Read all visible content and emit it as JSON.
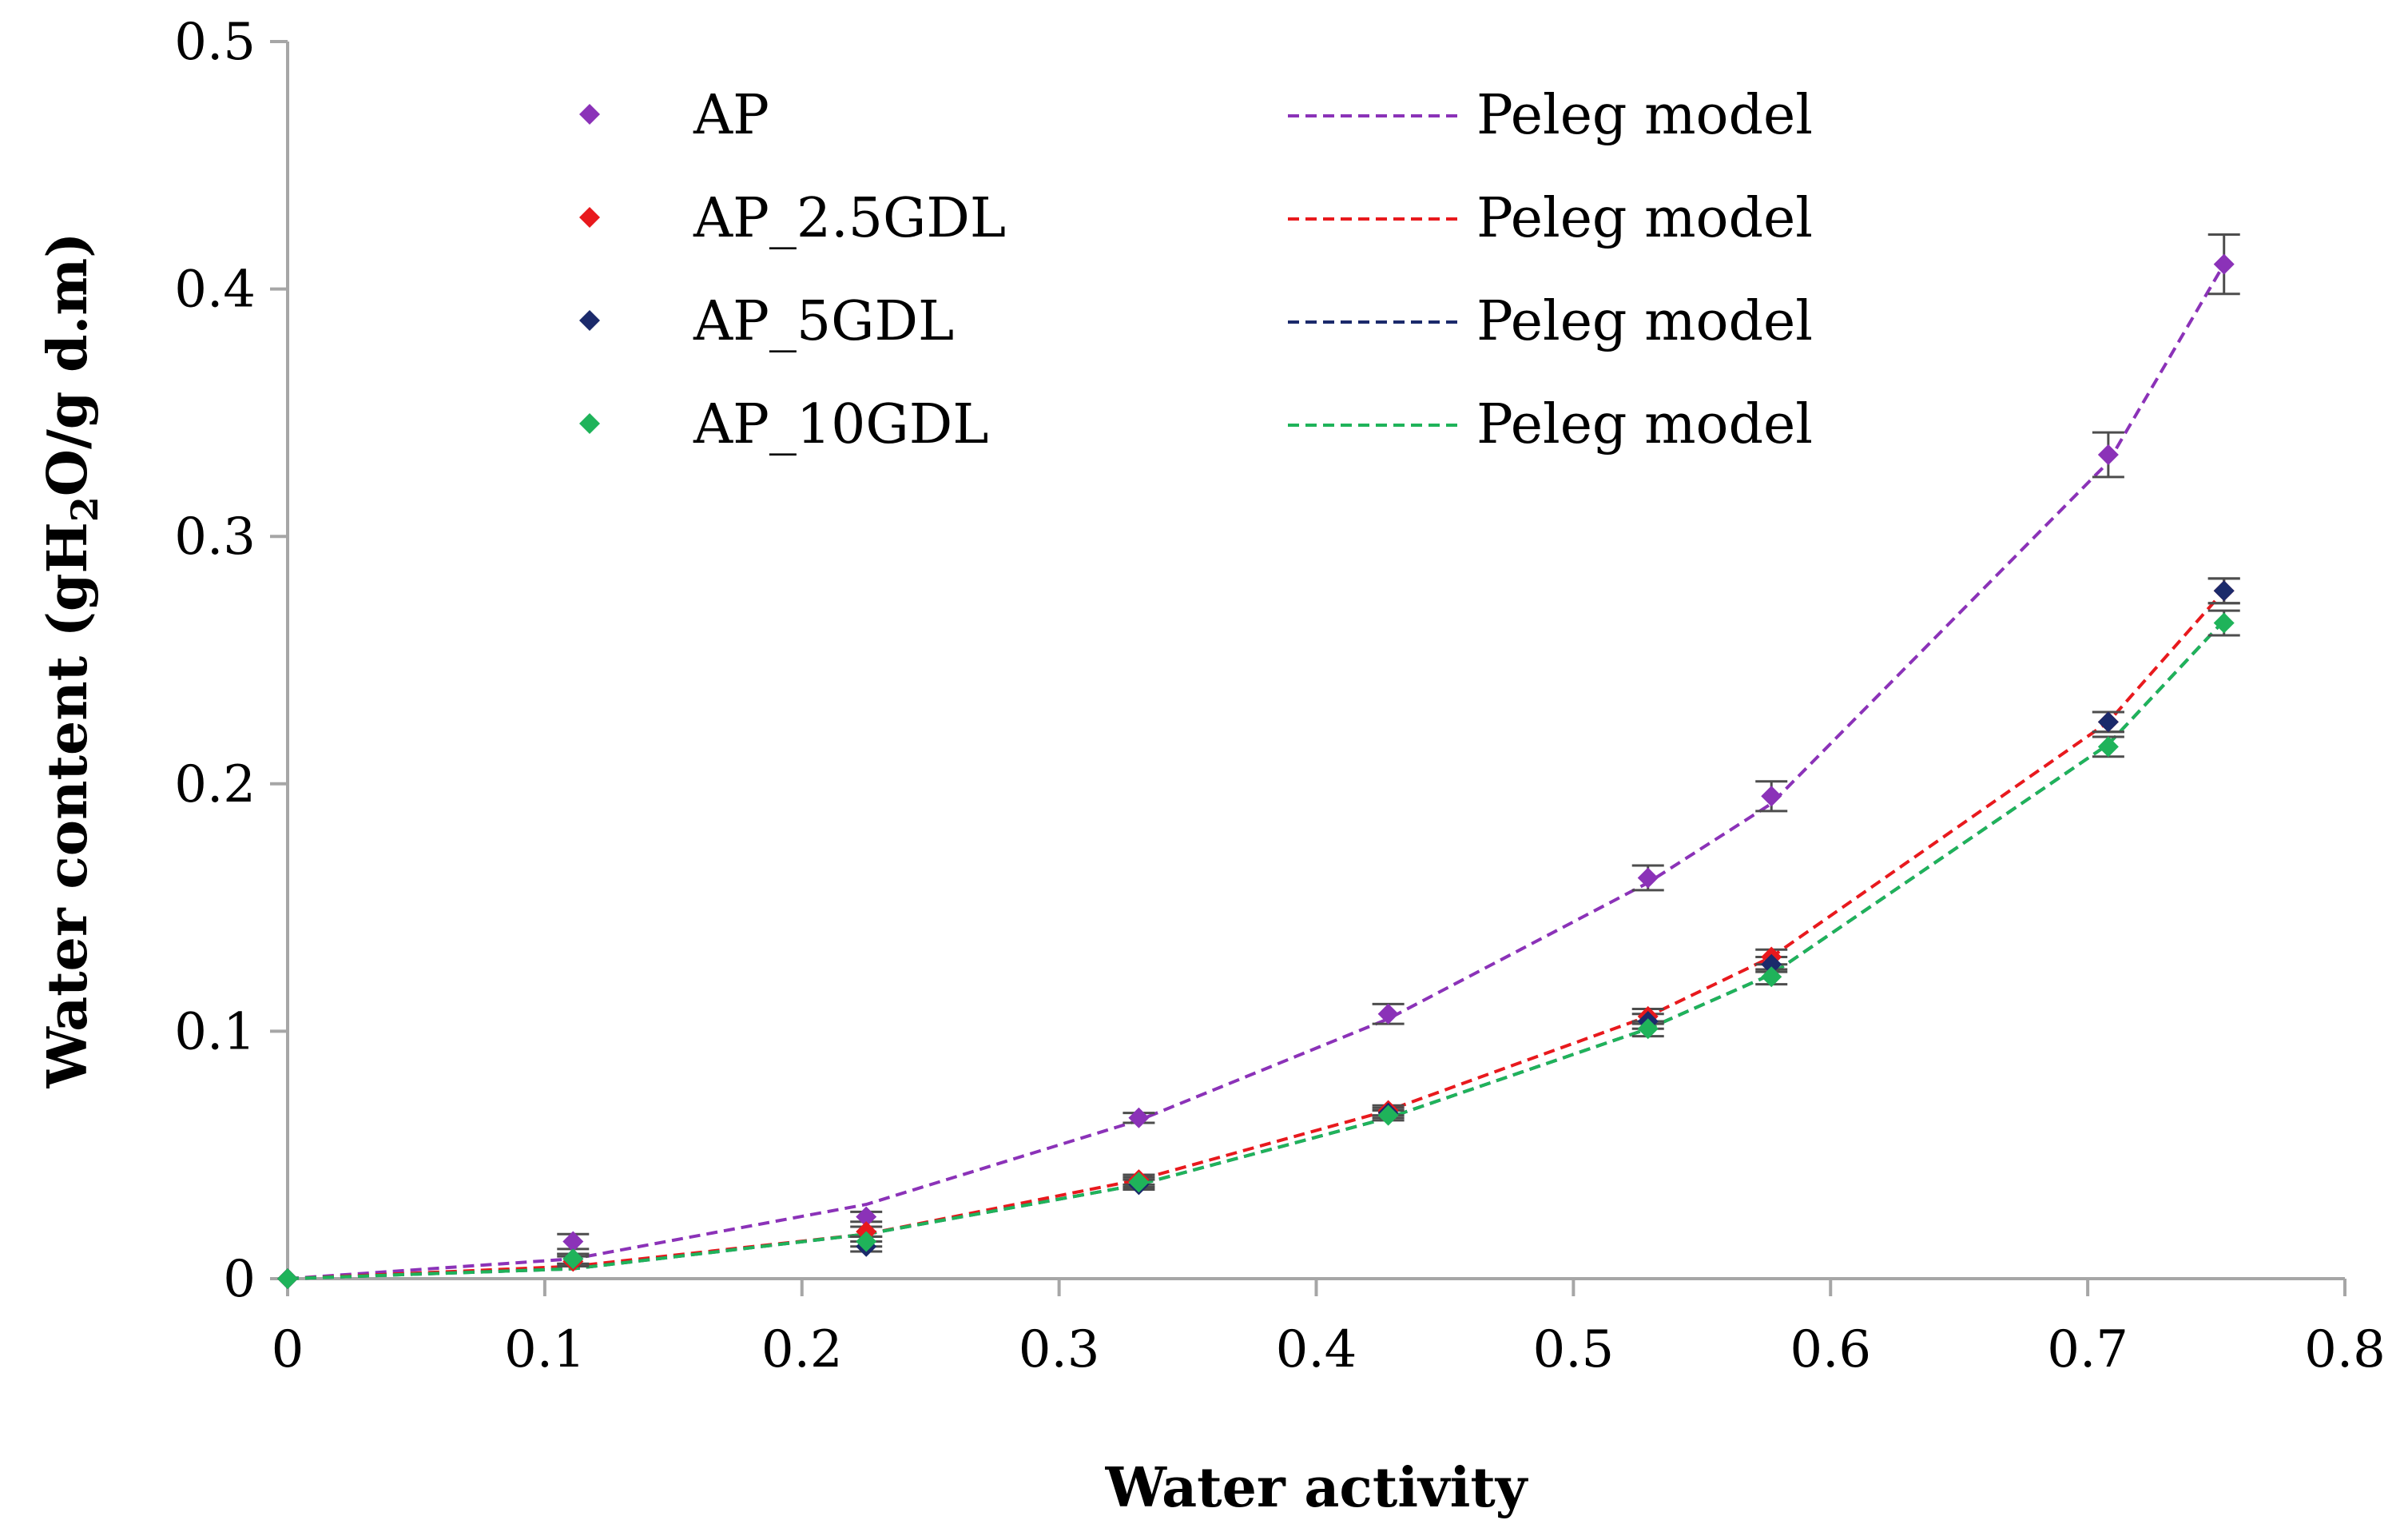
{
  "chart_data": {
    "type": "scatter",
    "title": "",
    "xlabel": "Water activity",
    "ylabel_parts": {
      "main": "Water content (gH",
      "sub": "2",
      "tail": "O/g d.m)"
    },
    "xlim": [
      0,
      0.8
    ],
    "ylim": [
      0,
      0.5
    ],
    "x_ticks": [
      "0",
      "0.1",
      "0.2",
      "0.3",
      "0.4",
      "0.5",
      "0.6",
      "0.7",
      "0.8"
    ],
    "y_ticks": [
      "0",
      "0.1",
      "0.2",
      "0.3",
      "0.4",
      "0.5"
    ],
    "legend_position": "top-center",
    "series": [
      {
        "name": "AP",
        "color": "#8B32B8",
        "x": [
          0,
          0.111,
          0.225,
          0.331,
          0.428,
          0.529,
          0.577,
          0.708,
          0.753
        ],
        "y": [
          0,
          0.015,
          0.025,
          0.065,
          0.107,
          0.162,
          0.195,
          0.333,
          0.41
        ],
        "err": [
          0,
          0.003,
          0.002,
          0.002,
          0.004,
          0.005,
          0.006,
          0.009,
          0.012
        ],
        "model_label": "Peleg model",
        "model_x": [
          0,
          0.111,
          0.225,
          0.331,
          0.428,
          0.529,
          0.577,
          0.708,
          0.753
        ],
        "model_y": [
          0,
          0.008,
          0.03,
          0.064,
          0.105,
          0.16,
          0.192,
          0.33,
          0.41
        ]
      },
      {
        "name": "AP_2.5GDL",
        "color": "#E8191D",
        "x": [
          0,
          0.111,
          0.225,
          0.331,
          0.428,
          0.529,
          0.577,
          0.708,
          0.753
        ],
        "y": [
          0,
          0.007,
          0.019,
          0.04,
          0.068,
          0.106,
          0.13,
          0.225,
          0.278
        ],
        "err": [
          0,
          0.002,
          0.002,
          0.002,
          0.002,
          0.003,
          0.003,
          0.004,
          0.005
        ],
        "model_label": "Peleg model",
        "model_x": [
          0,
          0.111,
          0.225,
          0.331,
          0.428,
          0.529,
          0.577,
          0.708,
          0.753
        ],
        "model_y": [
          0,
          0.005,
          0.018,
          0.04,
          0.068,
          0.106,
          0.13,
          0.225,
          0.278
        ]
      },
      {
        "name": "AP_5GDL",
        "color": "#1B2A6B",
        "x": [
          0,
          0.111,
          0.225,
          0.331,
          0.428,
          0.529,
          0.577,
          0.708,
          0.753
        ],
        "y": [
          0,
          0.008,
          0.013,
          0.038,
          0.067,
          0.104,
          0.127,
          0.225,
          0.278
        ],
        "err": [
          0,
          0.002,
          0.002,
          0.002,
          0.002,
          0.003,
          0.003,
          0.004,
          0.005
        ],
        "model_label": "Peleg model",
        "model_x": [
          0,
          0.111,
          0.225,
          0.331,
          0.428,
          0.529,
          0.577,
          0.708,
          0.753
        ],
        "model_y": [
          0,
          0.004,
          0.018,
          0.038,
          0.065,
          0.101,
          0.123,
          0.216,
          0.266
        ]
      },
      {
        "name": "AP_10GDL",
        "color": "#1FB35A",
        "x": [
          0,
          0.111,
          0.225,
          0.331,
          0.428,
          0.529,
          0.577,
          0.708,
          0.753
        ],
        "y": [
          0,
          0.008,
          0.015,
          0.039,
          0.066,
          0.101,
          0.122,
          0.215,
          0.265
        ],
        "err": [
          0,
          0.002,
          0.002,
          0.002,
          0.002,
          0.003,
          0.003,
          0.004,
          0.005
        ],
        "model_label": "Peleg model",
        "model_x": [
          0,
          0.111,
          0.225,
          0.331,
          0.428,
          0.529,
          0.577,
          0.708,
          0.753
        ],
        "model_y": [
          0,
          0.004,
          0.018,
          0.038,
          0.065,
          0.101,
          0.123,
          0.216,
          0.266
        ]
      }
    ]
  }
}
